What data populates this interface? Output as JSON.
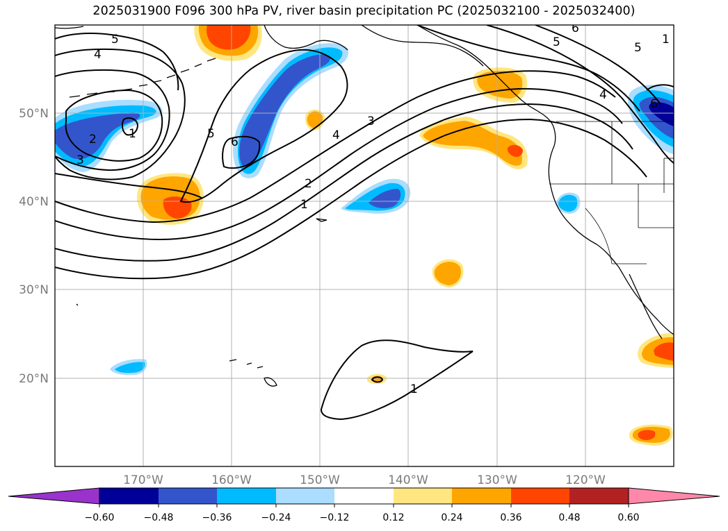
{
  "title": "2025031900 F096 300 hPa PV, river basin precipitation PC (2025032100 - 2025032400)",
  "map": {
    "lon_labels": [
      "170°W",
      "160°W",
      "150°W",
      "140°W",
      "130°W",
      "120°W"
    ],
    "lat_labels": [
      "50°N",
      "40°N",
      "30°N",
      "20°N"
    ],
    "contour_labels": [
      "5",
      "4",
      "2",
      "3",
      "1",
      "5",
      "6",
      "4",
      "3",
      "2",
      "1",
      "1",
      "6",
      "5",
      "5",
      "4",
      "6",
      "1"
    ]
  },
  "colorbar": {
    "ticks": [
      "−0.60",
      "−0.48",
      "−0.36",
      "−0.24",
      "−0.12",
      "0.12",
      "0.24",
      "0.36",
      "0.48",
      "0.60"
    ],
    "colors": [
      "#9933cc",
      "#000099",
      "#3355cc",
      "#00bbff",
      "#aaddff",
      "#ffffff",
      "#ffe680",
      "#ffa500",
      "#ff4500",
      "#b22222",
      "#ff88aa"
    ]
  }
}
